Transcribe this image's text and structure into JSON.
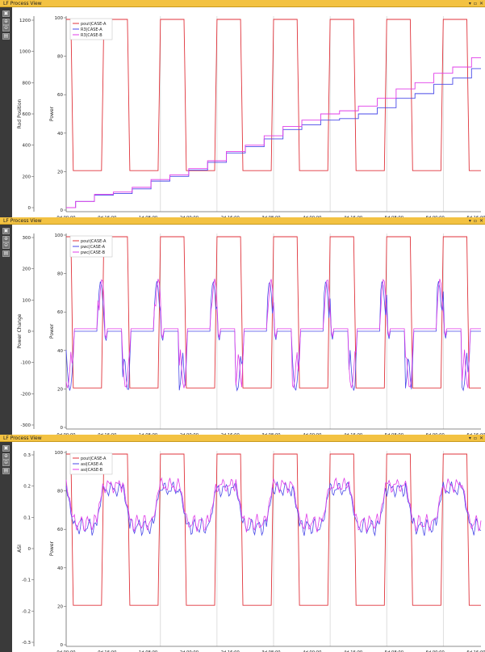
{
  "panels": [
    {
      "title": "LF Process View",
      "controls": [
        "▾",
        "▫",
        "✕"
      ],
      "left_axis_label": "Rod Position",
      "right_axis_label": "Power",
      "left_ticks": [
        "1200",
        "1000",
        "800",
        "600",
        "400",
        "200",
        "0"
      ],
      "right_ticks": [
        "100",
        "80",
        "60",
        "40",
        "20",
        "0"
      ],
      "legend": [
        "pout|CASE-A",
        "R3|CASE-A",
        "R3|CASE-B"
      ],
      "x_ticks": [
        "0d 00:00",
        "0d 16:00",
        "1d 08:00",
        "2d 00:00",
        "2d 16:00",
        "3d 08:00",
        "4d 00:00",
        "4d 16:00",
        "5d 08:00",
        "6d 00:00",
        "6d 16:00"
      ]
    },
    {
      "title": "LF Process View",
      "controls": [
        "▾",
        "▫",
        "✕"
      ],
      "left_axis_label": "Power Change",
      "right_axis_label": "Power",
      "left_ticks": [
        "300",
        "200",
        "100",
        "0",
        "-100",
        "-200",
        "-300"
      ],
      "right_ticks": [
        "100",
        "80",
        "60",
        "40",
        "20",
        "0"
      ],
      "legend": [
        "pout|CASE-A",
        "pwc|CASE-A",
        "pwc|CASE-B"
      ],
      "x_ticks": [
        "0d 00:00",
        "0d 16:00",
        "1d 08:00",
        "2d 00:00",
        "2d 16:00",
        "3d 08:00",
        "4d 00:00",
        "4d 16:00",
        "5d 08:00",
        "6d 00:00",
        "6d 16:00"
      ]
    },
    {
      "title": "LF Process View",
      "controls": [
        "▾",
        "▫",
        "✕"
      ],
      "left_axis_label": "ASI",
      "right_axis_label": "Power",
      "left_ticks": [
        "0.3",
        "0.2",
        "0.1",
        "0",
        "-0.1",
        "-0.2",
        "-0.3"
      ],
      "right_ticks": [
        "100",
        "80",
        "60",
        "40",
        "20",
        "0"
      ],
      "legend": [
        "pout|CASE-A",
        "asi|CASE-A",
        "asi|CASE-B"
      ],
      "x_ticks": [
        "0d 00:00",
        "0d 16:00",
        "1d 08:00",
        "2d 00:00",
        "2d 16:00",
        "3d 08:00",
        "4d 00:00",
        "4d 16:00",
        "5d 08:00",
        "6d 00:00",
        "6d 16:00"
      ]
    }
  ],
  "colors": {
    "pout": "#e0333b",
    "caseA": "#4a4ae8",
    "caseB": "#e03ce8",
    "titlebar": "#f3c242",
    "toolbar": "#3a3a3a"
  },
  "chart_data": [
    {
      "type": "line",
      "x_unit": "hours",
      "x_range": [
        0,
        176
      ],
      "y_left_range": [
        0,
        1250
      ],
      "y_right_range": [
        0,
        100
      ],
      "series": [
        {
          "name": "pout|CASE-A",
          "axis": "right",
          "shape": "daily load-follow cycle 100-20-100 %, 24 h period",
          "x": [
            0,
            2,
            4,
            6,
            8,
            10,
            12,
            14,
            16,
            18,
            20,
            22,
            24,
            26,
            28,
            30,
            32,
            34,
            36,
            38,
            40,
            42,
            44,
            46,
            48,
            50,
            52,
            54,
            56,
            58,
            60,
            62,
            64,
            66,
            68,
            70,
            72,
            74,
            76,
            78,
            80,
            82,
            84,
            86,
            88,
            90,
            92,
            94,
            96,
            98,
            100,
            102,
            104,
            106,
            108,
            110,
            112,
            114,
            116,
            118,
            120,
            122,
            124,
            126,
            128,
            130,
            132,
            134,
            136,
            138,
            140,
            142,
            144,
            146,
            148,
            150,
            152,
            154,
            156,
            158,
            160,
            162,
            164,
            166,
            168,
            170,
            172,
            174,
            176
          ],
          "values": [
            100,
            100,
            20,
            20,
            20,
            20,
            20,
            20,
            100,
            100,
            100,
            100,
            100,
            100,
            20,
            20,
            20,
            20,
            20,
            20,
            100,
            100,
            100,
            100,
            100,
            100,
            20,
            20,
            20,
            20,
            20,
            20,
            100,
            100,
            100,
            100,
            100,
            100,
            20,
            20,
            20,
            20,
            20,
            20,
            100,
            100,
            100,
            100,
            100,
            100,
            20,
            20,
            20,
            20,
            20,
            20,
            100,
            100,
            100,
            100,
            100,
            100,
            20,
            20,
            20,
            20,
            20,
            20,
            100,
            100,
            100,
            100,
            100,
            100,
            20,
            20,
            20,
            20,
            20,
            20,
            100,
            100,
            100,
            100,
            100,
            100,
            20,
            20,
            100
          ]
        },
        {
          "name": "R3|CASE-A",
          "axis": "left",
          "x": [
            0,
            8,
            16,
            24,
            32,
            40,
            48,
            56,
            64,
            72,
            80,
            88,
            96,
            104,
            112,
            120,
            128,
            136,
            144,
            152,
            160,
            168,
            176
          ],
          "values": [
            0,
            40,
            80,
            90,
            120,
            170,
            200,
            240,
            290,
            350,
            390,
            440,
            500,
            530,
            560,
            570,
            600,
            640,
            700,
            730,
            790,
            830,
            890
          ]
        },
        {
          "name": "R3|CASE-B",
          "axis": "left",
          "x": [
            0,
            8,
            16,
            24,
            32,
            40,
            48,
            56,
            64,
            72,
            80,
            88,
            96,
            104,
            112,
            120,
            128,
            136,
            144,
            152,
            160,
            168,
            176
          ],
          "values": [
            0,
            40,
            85,
            100,
            130,
            180,
            210,
            250,
            300,
            360,
            400,
            460,
            520,
            560,
            600,
            620,
            650,
            700,
            760,
            800,
            860,
            900,
            960
          ]
        }
      ]
    },
    {
      "type": "line",
      "x_unit": "hours",
      "x_range": [
        0,
        176
      ],
      "y_left_range": [
        -320,
        320
      ],
      "y_right_range": [
        0,
        100
      ],
      "series": [
        {
          "name": "pout|CASE-A",
          "axis": "right",
          "shape": "same daily cycle as panel 1"
        },
        {
          "name": "pwc|CASE-A",
          "axis": "left",
          "shape": "spiky power-change signal, +50..+170 during ramp-up, -50..-200 during ramp-down, 0 otherwise"
        },
        {
          "name": "pwc|CASE-B",
          "axis": "left",
          "shape": "similar to CASE-A with slightly different amplitudes"
        }
      ]
    },
    {
      "type": "line",
      "x_unit": "hours",
      "x_range": [
        0,
        176
      ],
      "y_left_range": [
        -0.3,
        0.3
      ],
      "y_right_range": [
        0,
        100
      ],
      "series": [
        {
          "name": "pout|CASE-A",
          "axis": "right",
          "shape": "same daily cycle as panel 1"
        },
        {
          "name": "asi|CASE-A",
          "axis": "left",
          "shape": "wave between about 0.02 and 0.21 following the power cycle"
        },
        {
          "name": "asi|CASE-B",
          "axis": "left",
          "shape": "similar to CASE-A, slightly higher peaks"
        }
      ]
    }
  ]
}
